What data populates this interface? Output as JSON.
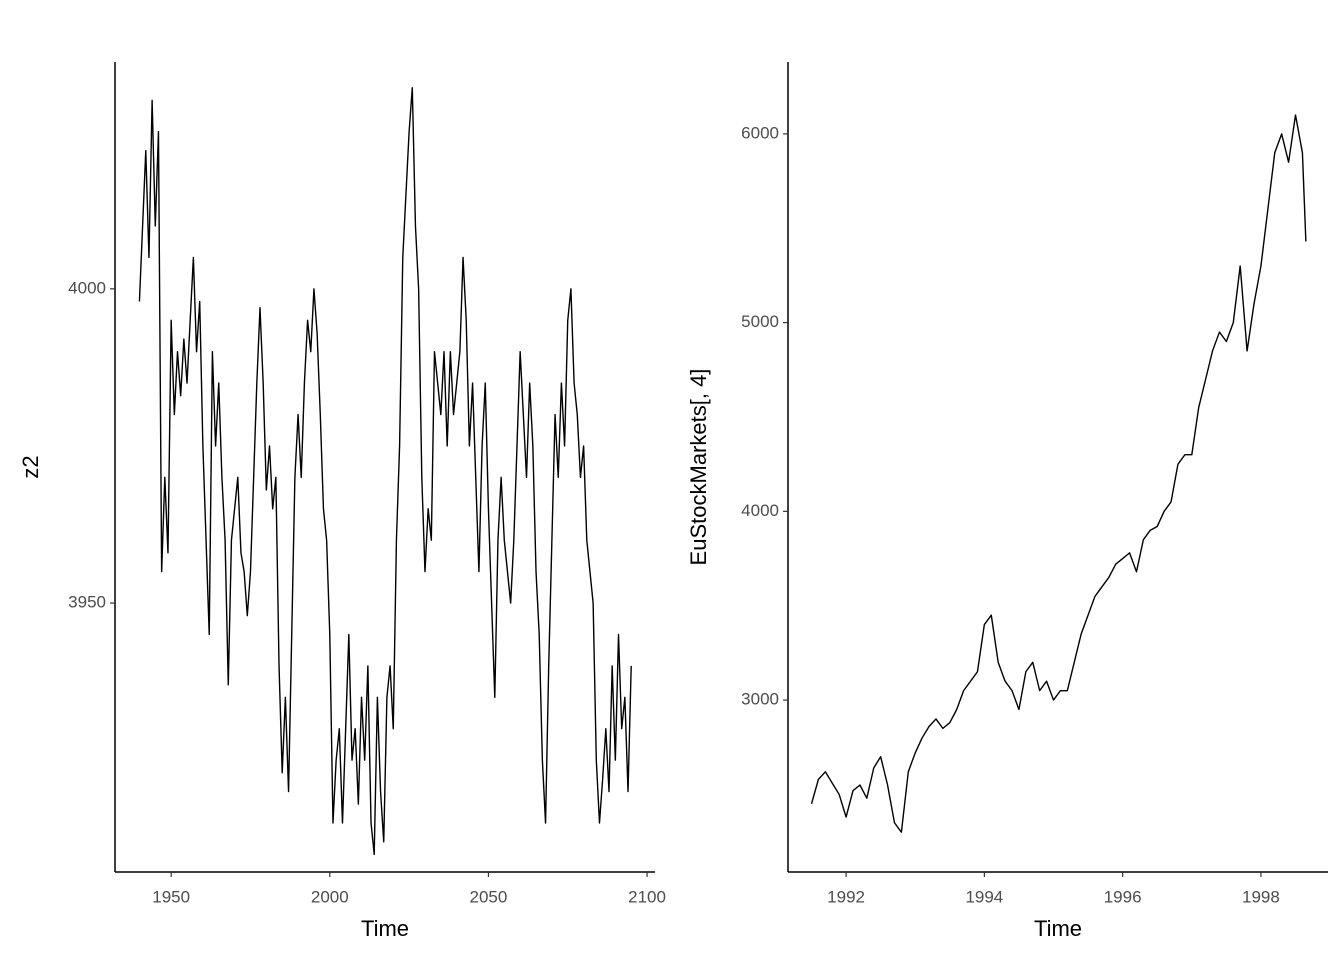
{
  "chart_data": [
    {
      "type": "line",
      "xlabel": "Time",
      "ylabel": "z2",
      "color": "#000000",
      "xlim": [
        1932.3,
        2102.5
      ],
      "ylim": [
        3907.2,
        4036.1
      ],
      "xticks": [
        1950,
        2000,
        2050,
        2100
      ],
      "yticks": [
        3950,
        4000
      ],
      "x": [
        1940,
        1941,
        1942,
        1943,
        1944,
        1945,
        1946,
        1947,
        1948,
        1949,
        1950,
        1951,
        1952,
        1953,
        1954,
        1955,
        1956,
        1957,
        1958,
        1959,
        1960,
        1961,
        1962,
        1963,
        1964,
        1965,
        1966,
        1967,
        1968,
        1969,
        1970,
        1971,
        1972,
        1973,
        1974,
        1975,
        1976,
        1977,
        1978,
        1979,
        1980,
        1981,
        1982,
        1983,
        1984,
        1985,
        1986,
        1987,
        1988,
        1989,
        1990,
        1991,
        1992,
        1993,
        1994,
        1995,
        1996,
        1997,
        1998,
        1999,
        2000,
        2001,
        2002,
        2003,
        2004,
        2005,
        2006,
        2007,
        2008,
        2009,
        2010,
        2011,
        2012,
        2013,
        2014,
        2015,
        2016,
        2017,
        2018,
        2019,
        2020,
        2021,
        2022,
        2023,
        2024,
        2025,
        2026,
        2027,
        2028,
        2029,
        2030,
        2031,
        2032,
        2033,
        2034,
        2035,
        2036,
        2037,
        2038,
        2039,
        2040,
        2041,
        2042,
        2043,
        2044,
        2045,
        2046,
        2047,
        2048,
        2049,
        2050,
        2051,
        2052,
        2053,
        2054,
        2055,
        2056,
        2057,
        2058,
        2059,
        2060,
        2061,
        2062,
        2063,
        2064,
        2065,
        2066,
        2067,
        2068,
        2069,
        2070,
        2071,
        2072,
        2073,
        2074,
        2075,
        2076,
        2077,
        2078,
        2079,
        2080,
        2081,
        2082,
        2083,
        2084,
        2085,
        2086,
        2087,
        2088,
        2089,
        2090,
        2091,
        2092,
        2093,
        2094,
        2095
      ],
      "values": [
        3998,
        4010,
        4022,
        4005,
        4030,
        4010,
        4025,
        3955,
        3970,
        3958,
        3995,
        3980,
        3990,
        3983,
        3992,
        3985,
        3995,
        4005,
        3990,
        3998,
        3975,
        3960,
        3945,
        3990,
        3975,
        3985,
        3970,
        3960,
        3937,
        3960,
        3965,
        3970,
        3958,
        3955,
        3948,
        3955,
        3970,
        3985,
        3997,
        3985,
        3968,
        3975,
        3965,
        3970,
        3940,
        3923,
        3935,
        3920,
        3945,
        3970,
        3980,
        3970,
        3985,
        3995,
        3990,
        4000,
        3993,
        3980,
        3965,
        3960,
        3945,
        3915,
        3925,
        3930,
        3915,
        3930,
        3945,
        3925,
        3930,
        3918,
        3935,
        3925,
        3940,
        3915,
        3910,
        3935,
        3920,
        3912,
        3935,
        3940,
        3930,
        3960,
        3975,
        4005,
        4015,
        4025,
        4032,
        4010,
        4000,
        3970,
        3955,
        3965,
        3960,
        3990,
        3985,
        3980,
        3990,
        3975,
        3990,
        3980,
        3985,
        3990,
        4005,
        3995,
        3975,
        3985,
        3970,
        3955,
        3975,
        3985,
        3965,
        3950,
        3935,
        3960,
        3970,
        3960,
        3955,
        3950,
        3960,
        3975,
        3990,
        3980,
        3970,
        3985,
        3975,
        3955,
        3945,
        3925,
        3915,
        3940,
        3960,
        3980,
        3970,
        3985,
        3975,
        3995,
        4000,
        3985,
        3980,
        3970,
        3975,
        3960,
        3955,
        3950,
        3925,
        3915,
        3922,
        3930,
        3920,
        3940,
        3925,
        3945,
        3930,
        3935,
        3920,
        3940
      ]
    },
    {
      "type": "line",
      "xlabel": "Time",
      "ylabel": "EuStockMarkets[, 4]",
      "color": "#000000",
      "xlim": [
        1991.16,
        1998.97
      ],
      "ylim": [
        2089,
        6381
      ],
      "xticks": [
        1992,
        1994,
        1996,
        1998
      ],
      "yticks": [
        3000,
        4000,
        5000,
        6000
      ],
      "x": [
        1991.5,
        1991.6,
        1991.7,
        1991.8,
        1991.9,
        1992.0,
        1992.1,
        1992.2,
        1992.3,
        1992.4,
        1992.5,
        1992.6,
        1992.7,
        1992.8,
        1992.9,
        1993.0,
        1993.1,
        1993.2,
        1993.3,
        1993.4,
        1993.5,
        1993.6,
        1993.7,
        1993.8,
        1993.9,
        1994.0,
        1994.1,
        1994.2,
        1994.3,
        1994.4,
        1994.5,
        1994.6,
        1994.7,
        1994.8,
        1994.9,
        1995.0,
        1995.1,
        1995.2,
        1995.3,
        1995.4,
        1995.5,
        1995.6,
        1995.7,
        1995.8,
        1995.9,
        1996.0,
        1996.1,
        1996.2,
        1996.3,
        1996.4,
        1996.5,
        1996.6,
        1996.7,
        1996.8,
        1996.9,
        1997.0,
        1997.1,
        1997.2,
        1997.3,
        1997.4,
        1997.5,
        1997.6,
        1997.7,
        1997.8,
        1997.9,
        1998.0,
        1998.1,
        1998.2,
        1998.3,
        1998.4,
        1998.5,
        1998.6,
        1998.65
      ],
      "values": [
        2450,
        2580,
        2620,
        2560,
        2500,
        2380,
        2520,
        2550,
        2480,
        2640,
        2700,
        2550,
        2350,
        2300,
        2620,
        2720,
        2800,
        2860,
        2900,
        2850,
        2880,
        2950,
        3050,
        3100,
        3150,
        3400,
        3450,
        3200,
        3100,
        3050,
        2950,
        3150,
        3200,
        3050,
        3100,
        3000,
        3050,
        3050,
        3200,
        3350,
        3450,
        3550,
        3600,
        3650,
        3720,
        3750,
        3780,
        3680,
        3850,
        3900,
        3920,
        4000,
        4050,
        4250,
        4300,
        4300,
        4550,
        4700,
        4850,
        4950,
        4900,
        5000,
        5300,
        4850,
        5100,
        5300,
        5600,
        5900,
        6000,
        5850,
        6100,
        5900,
        5430
      ]
    }
  ]
}
